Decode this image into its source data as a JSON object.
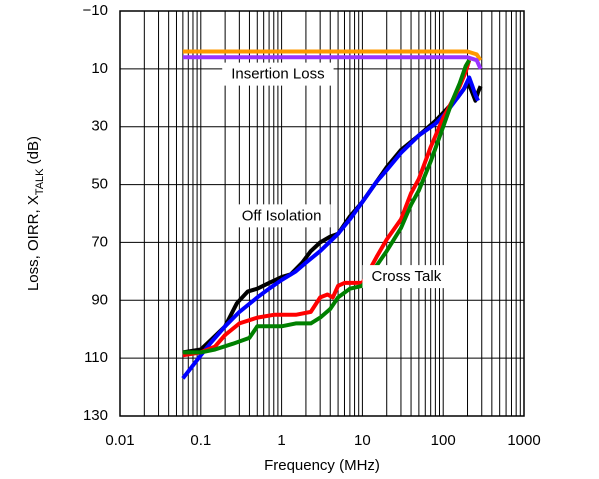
{
  "chart_data": {
    "type": "line",
    "xlabel": "Frequency (MHz)",
    "ylabel": {
      "main": "Loss, OIRR, X",
      "sub": "TALK",
      "suffix": " (dB)"
    },
    "x_scale": "log",
    "xlim": [
      0.01,
      1000
    ],
    "ylim": [
      -10,
      130
    ],
    "y_inverted": true,
    "x_ticks": [
      {
        "value": 0.01,
        "label": "0.01"
      },
      {
        "value": 0.1,
        "label": "0.1"
      },
      {
        "value": 1,
        "label": "1"
      },
      {
        "value": 10,
        "label": "10"
      },
      {
        "value": 100,
        "label": "100"
      },
      {
        "value": 1000,
        "label": "1000"
      }
    ],
    "y_ticks": [
      {
        "value": -10,
        "label": "−10"
      },
      {
        "value": 10,
        "label": "10"
      },
      {
        "value": 30,
        "label": "30"
      },
      {
        "value": 50,
        "label": "50"
      },
      {
        "value": 70,
        "label": "70"
      },
      {
        "value": 90,
        "label": "90"
      },
      {
        "value": 110,
        "label": "110"
      },
      {
        "value": 130,
        "label": "130"
      }
    ],
    "grid": true,
    "annotations": [
      {
        "text": "Insertion Loss",
        "x": 0.9,
        "y": 12
      },
      {
        "text": "Off Isolation",
        "x": 1.0,
        "y": 61
      },
      {
        "text": "Cross Talk",
        "x": 35,
        "y": 82
      }
    ],
    "series": [
      {
        "color": "#ff9900",
        "values": [
          [
            0.06,
            4
          ],
          [
            0.5,
            4
          ],
          [
            5,
            4
          ],
          [
            50,
            4
          ],
          [
            200,
            4
          ],
          [
            260,
            5
          ],
          [
            290,
            7
          ]
        ]
      },
      {
        "color": "#9933ff",
        "values": [
          [
            0.06,
            6
          ],
          [
            0.5,
            6
          ],
          [
            5,
            6
          ],
          [
            50,
            6
          ],
          [
            200,
            6
          ],
          [
            260,
            7
          ],
          [
            290,
            10
          ]
        ]
      },
      {
        "color": "#000000",
        "values": [
          [
            0.06,
            108
          ],
          [
            0.1,
            107
          ],
          [
            0.13,
            104
          ],
          [
            0.2,
            99
          ],
          [
            0.28,
            91
          ],
          [
            0.38,
            87
          ],
          [
            0.5,
            86
          ],
          [
            0.7,
            84
          ],
          [
            1,
            82
          ],
          [
            1.3,
            81
          ],
          [
            1.8,
            77
          ],
          [
            2.3,
            73
          ],
          [
            3,
            70
          ],
          [
            4,
            68
          ],
          [
            5,
            67
          ],
          [
            7,
            61
          ],
          [
            10,
            56
          ],
          [
            15,
            49
          ],
          [
            20,
            44
          ],
          [
            30,
            38
          ],
          [
            50,
            33
          ],
          [
            80,
            28
          ],
          [
            110,
            24
          ],
          [
            150,
            20
          ],
          [
            180,
            17
          ],
          [
            200,
            15
          ],
          [
            220,
            17
          ],
          [
            250,
            21
          ],
          [
            270,
            18
          ],
          [
            290,
            16
          ]
        ]
      },
      {
        "color": "#0000ff",
        "values": [
          [
            0.06,
            117
          ],
          [
            0.1,
            109
          ],
          [
            0.13,
            105
          ],
          [
            0.2,
            99
          ],
          [
            0.3,
            94
          ],
          [
            0.5,
            89
          ],
          [
            0.7,
            86
          ],
          [
            1,
            83
          ],
          [
            1.5,
            80
          ],
          [
            2,
            77
          ],
          [
            3,
            73
          ],
          [
            5,
            67
          ],
          [
            7,
            62
          ],
          [
            10,
            56
          ],
          [
            15,
            49
          ],
          [
            20,
            45
          ],
          [
            30,
            39
          ],
          [
            50,
            33
          ],
          [
            80,
            29
          ],
          [
            110,
            25
          ],
          [
            150,
            20
          ],
          [
            180,
            17
          ],
          [
            210,
            13
          ],
          [
            230,
            16
          ],
          [
            250,
            19
          ],
          [
            270,
            21
          ]
        ]
      },
      {
        "color": "#ff0000",
        "values": [
          [
            0.06,
            109
          ],
          [
            0.1,
            108
          ],
          [
            0.15,
            106
          ],
          [
            0.2,
            102
          ],
          [
            0.3,
            98
          ],
          [
            0.5,
            96
          ],
          [
            0.8,
            95
          ],
          [
            1.5,
            95
          ],
          [
            2.3,
            94
          ],
          [
            3,
            89
          ],
          [
            3.7,
            88
          ],
          [
            4.3,
            89
          ],
          [
            5,
            85
          ],
          [
            6,
            84
          ],
          [
            8,
            84
          ],
          [
            10,
            84
          ],
          [
            15,
            75
          ],
          [
            20,
            69
          ],
          [
            30,
            62
          ],
          [
            40,
            53
          ],
          [
            50,
            48
          ],
          [
            70,
            37
          ],
          [
            100,
            27
          ],
          [
            130,
            21
          ],
          [
            160,
            16
          ],
          [
            190,
            11
          ],
          [
            210,
            7
          ]
        ]
      },
      {
        "color": "#008000",
        "values": [
          [
            0.06,
            108
          ],
          [
            0.1,
            108
          ],
          [
            0.15,
            107
          ],
          [
            0.25,
            105
          ],
          [
            0.4,
            103
          ],
          [
            0.5,
            99
          ],
          [
            0.7,
            99
          ],
          [
            1,
            99
          ],
          [
            1.5,
            98
          ],
          [
            2.3,
            98
          ],
          [
            3,
            96
          ],
          [
            4,
            93
          ],
          [
            5,
            89
          ],
          [
            7,
            86
          ],
          [
            10,
            85
          ],
          [
            15,
            78
          ],
          [
            20,
            73
          ],
          [
            30,
            65
          ],
          [
            40,
            57
          ],
          [
            50,
            52
          ],
          [
            70,
            42
          ],
          [
            100,
            30
          ],
          [
            130,
            21
          ],
          [
            160,
            15
          ],
          [
            190,
            9
          ],
          [
            210,
            7
          ]
        ]
      }
    ]
  }
}
